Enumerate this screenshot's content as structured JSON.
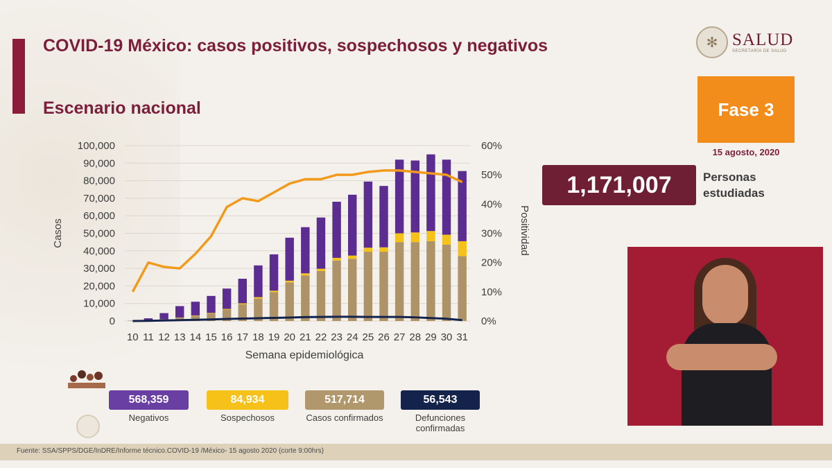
{
  "title": "COVID-19 México: casos positivos, sospechosos y negativos",
  "subtitle": "Escenario nacional",
  "logo": {
    "name": "SALUD",
    "tagline": "SECRETARÍA DE SALUD",
    "emblem_icon": "mexico-coat-of-arms-icon"
  },
  "phase": "Fase 3",
  "date": "15 agosto, 2020",
  "total": {
    "value": "1,171,007",
    "label_line1": "Personas",
    "label_line2": "estudiadas"
  },
  "colors": {
    "negativos": "#5b2d91",
    "sospechosos": "#f5c219",
    "confirmados": "#ad9367",
    "defunciones": "#14234b",
    "positividad": "#f29a1c",
    "brand": "#7b1e3b",
    "phase": "#f28c1a"
  },
  "legend": [
    {
      "value": "568,359",
      "label": "Negativos",
      "color": "#6a3fa3"
    },
    {
      "value": "84,934",
      "label": "Sospechosos",
      "color": "#f6c21a"
    },
    {
      "value": "517,714",
      "label": "Casos confirmados",
      "color": "#b0986c"
    },
    {
      "value": "56,543",
      "label": "Defunciones confirmadas",
      "color": "#14234b"
    }
  ],
  "footer": "Fuente: SSA/SPPS/DGE/InDRE/Informe técnico.COVID-19 /México- 15 agosto 2020 (corte 9:00hrs)",
  "chart_data": {
    "type": "bar",
    "xlabel": "Semana epidemiológica",
    "ylabel": "Casos",
    "y2label": "Positividad",
    "ylim": [
      0,
      100000
    ],
    "y2lim": [
      0,
      60
    ],
    "yticks": [
      "100,000",
      "90,000",
      "80,000",
      "70,000",
      "60,000",
      "50,000",
      "40,000",
      "30,000",
      "20,000",
      "10,000",
      "0"
    ],
    "y2ticks": [
      "60%",
      "50%",
      "40%",
      "30%",
      "20%",
      "10%",
      "0%"
    ],
    "grid": true,
    "categories": [
      "10",
      "11",
      "12",
      "13",
      "14",
      "15",
      "16",
      "17",
      "18",
      "19",
      "20",
      "21",
      "22",
      "23",
      "24",
      "25",
      "26",
      "27",
      "28",
      "29",
      "30",
      "31"
    ],
    "series": [
      {
        "name": "Casos confirmados",
        "kind": "stacked-bar",
        "values": [
          50,
          300,
          900,
          1900,
          3000,
          4300,
          6500,
          9500,
          12800,
          16500,
          22000,
          26000,
          28500,
          34500,
          35500,
          39500,
          39500,
          45000,
          45000,
          45500,
          43500,
          37000
        ]
      },
      {
        "name": "Sospechosos",
        "kind": "stacked-bar",
        "values": [
          0,
          50,
          100,
          100,
          200,
          300,
          400,
          600,
          800,
          800,
          1000,
          1200,
          1300,
          1500,
          1800,
          2300,
          2500,
          5000,
          5500,
          5800,
          5700,
          8500
        ]
      },
      {
        "name": "Negativos",
        "kind": "stacked-bar",
        "values": [
          100,
          1200,
          3500,
          6500,
          7800,
          9700,
          11600,
          14000,
          18100,
          20700,
          24500,
          26300,
          29200,
          32000,
          34700,
          37700,
          35000,
          42000,
          41000,
          43700,
          42800,
          40000
        ]
      },
      {
        "name": "Defunciones",
        "kind": "line",
        "values": [
          0,
          100,
          300,
          500,
          700,
          900,
          1200,
          1400,
          1600,
          1800,
          2000,
          2200,
          2300,
          2400,
          2400,
          2300,
          2300,
          2300,
          2100,
          1700,
          1300,
          500
        ]
      },
      {
        "name": "Positividad",
        "kind": "line-secondary",
        "values": [
          10,
          20,
          18.5,
          18,
          23,
          29,
          39,
          42,
          41,
          44,
          47,
          48.5,
          48.5,
          50,
          50,
          51,
          51.5,
          51.5,
          51,
          50.5,
          50,
          47.5
        ]
      }
    ]
  }
}
